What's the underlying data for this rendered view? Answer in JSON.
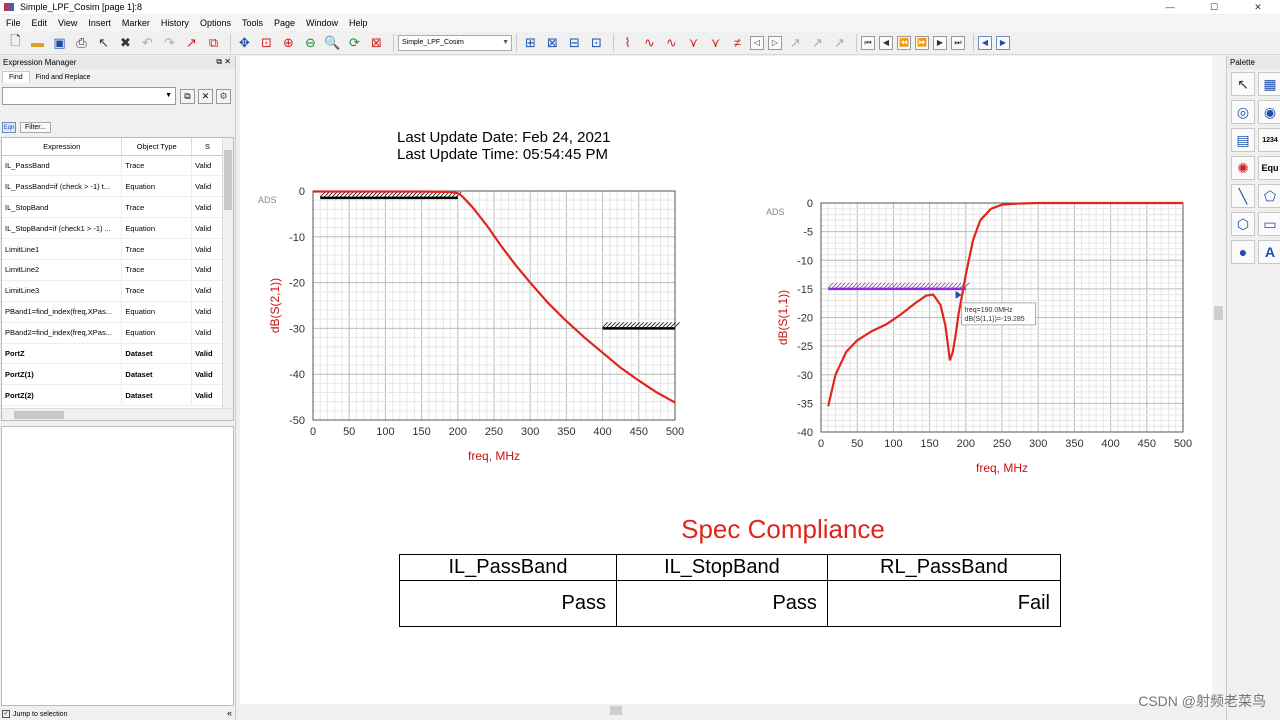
{
  "window": {
    "title": "Simple_LPF_Cosim [page 1]:8"
  },
  "menu": [
    "File",
    "Edit",
    "View",
    "Insert",
    "Marker",
    "History",
    "Options",
    "Tools",
    "Page",
    "Window",
    "Help"
  ],
  "toolbar": {
    "page_combo": "Simple_LPF_Cosim"
  },
  "expression_manager": {
    "title": "Expression Manager",
    "tabs": [
      "Find",
      "Find and Replace"
    ],
    "filter_label": "Filter...",
    "columns": [
      "Expression",
      "Object Type",
      "S"
    ],
    "rows": [
      {
        "expr": "IL_PassBand",
        "type": "Trace",
        "status": "Valid",
        "bold": false
      },
      {
        "expr": "IL_PassBand=if (check > -1) t...",
        "type": "Equation",
        "status": "Valid",
        "bold": false
      },
      {
        "expr": "IL_StopBand",
        "type": "Trace",
        "status": "Valid",
        "bold": false
      },
      {
        "expr": "IL_StopBand=if (check1 > -1) ...",
        "type": "Equation",
        "status": "Valid",
        "bold": false
      },
      {
        "expr": "LimitLine1",
        "type": "Trace",
        "status": "Valid",
        "bold": false
      },
      {
        "expr": "LimitLine2",
        "type": "Trace",
        "status": "Valid",
        "bold": false
      },
      {
        "expr": "LimitLine3",
        "type": "Trace",
        "status": "Valid",
        "bold": false
      },
      {
        "expr": "PBand1=find_index(freq,XPas...",
        "type": "Equation",
        "status": "Valid",
        "bold": false
      },
      {
        "expr": "PBand2=find_index(freq,XPas...",
        "type": "Equation",
        "status": "Valid",
        "bold": false
      },
      {
        "expr": "PortZ",
        "type": "Dataset",
        "status": "Valid",
        "bold": true
      },
      {
        "expr": "PortZ(1)",
        "type": "Dataset",
        "status": "Valid",
        "bold": true
      },
      {
        "expr": "PortZ(2)",
        "type": "Dataset",
        "status": "Valid",
        "bold": true
      }
    ],
    "jump_label": "Jump to selection"
  },
  "palette": {
    "title": "Palette"
  },
  "last_update": {
    "date": "Last Update Date: Feb 24, 2021",
    "time": "Last Update Time: 05:54:45 PM"
  },
  "chart_data": [
    {
      "type": "line",
      "watermark": "ADS",
      "xlabel": "freq, MHz",
      "ylabel": "dB(S(2,1))",
      "xlim": [
        0,
        500
      ],
      "ylim": [
        -50,
        0
      ],
      "xticks": [
        0,
        50,
        100,
        150,
        200,
        250,
        300,
        350,
        400,
        450,
        500
      ],
      "yticks": [
        0,
        -10,
        -20,
        -30,
        -40,
        -50
      ],
      "series": [
        {
          "color": "#e0261c",
          "x": [
            0,
            50,
            100,
            150,
            190,
            200,
            205,
            210,
            220,
            240,
            260,
            280,
            300,
            325,
            350,
            375,
            400,
            425,
            450,
            475,
            500
          ],
          "y": [
            -0.1,
            -0.1,
            -0.1,
            -0.1,
            -0.2,
            -0.5,
            -1.0,
            -1.8,
            -3.5,
            -7.5,
            -12.0,
            -16.2,
            -20.0,
            -24.5,
            -28.4,
            -32.0,
            -35.3,
            -38.6,
            -41.4,
            -44.0,
            -46.2
          ]
        }
      ],
      "limit_lines": [
        {
          "x": [
            10,
            200
          ],
          "y": [
            -1.5,
            -1.5
          ],
          "color": "#000000"
        },
        {
          "x": [
            400,
            500
          ],
          "y": [
            -30,
            -30
          ],
          "color": "#000000"
        }
      ]
    },
    {
      "type": "line",
      "watermark": "ADS",
      "xlabel": "freq, MHz",
      "ylabel": "dB(S(1,1))",
      "xlim": [
        0,
        500
      ],
      "ylim": [
        -40,
        0
      ],
      "xticks": [
        0,
        50,
        100,
        150,
        200,
        250,
        300,
        350,
        400,
        450,
        500
      ],
      "yticks": [
        0,
        -5,
        -10,
        -15,
        -20,
        -25,
        -30,
        -35,
        -40
      ],
      "series": [
        {
          "color": "#e0261c",
          "x": [
            10,
            20,
            35,
            50,
            70,
            90,
            110,
            130,
            145,
            155,
            165,
            172,
            178,
            182,
            186,
            190,
            195,
            200,
            210,
            220,
            235,
            250,
            270,
            300,
            350,
            400,
            450,
            500
          ],
          "y": [
            -35.5,
            -30,
            -26,
            -24,
            -22.4,
            -21.2,
            -19.5,
            -17.5,
            -16.2,
            -16.0,
            -17.8,
            -21.5,
            -27.5,
            -26.0,
            -23.0,
            -19.3,
            -16.0,
            -12.5,
            -6.5,
            -3.0,
            -1.0,
            -0.3,
            -0.1,
            0,
            0,
            0,
            0,
            0
          ]
        }
      ],
      "limit_lines": [
        {
          "x": [
            10,
            200
          ],
          "y": [
            -15,
            -15
          ],
          "color": "#8a2be2"
        }
      ],
      "marker": {
        "lines": [
          "freq=190.0MHz",
          "dB(S(1,1))=-19.285"
        ]
      }
    }
  ],
  "spec_compliance": {
    "title": "Spec Compliance",
    "headers": [
      "IL_PassBand",
      "IL_StopBand",
      "RL_PassBand"
    ],
    "values": [
      "Pass",
      "Pass",
      "Fail"
    ]
  },
  "watermark": "CSDN @射频老菜鸟"
}
